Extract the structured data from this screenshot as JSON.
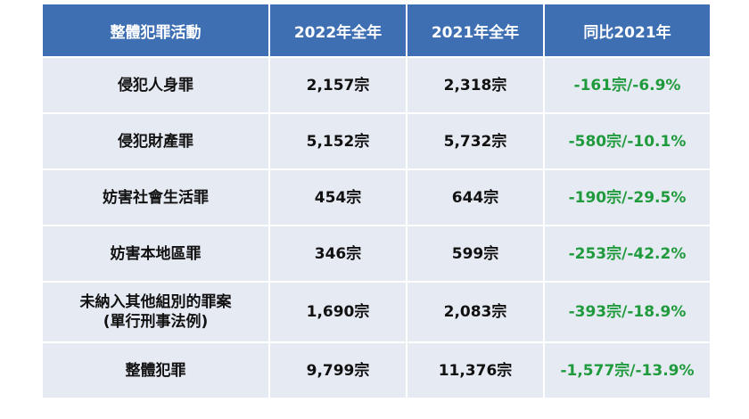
{
  "table": {
    "headers": [
      "整體犯罪活動",
      "2022年全年",
      "2021年全年",
      "同比2021年"
    ],
    "rows": [
      {
        "category_lines": [
          "侵犯人身罪"
        ],
        "y2022": "2,157宗",
        "y2021": "2,318宗",
        "change": "-161宗/-6.9%"
      },
      {
        "category_lines": [
          "侵犯財產罪"
        ],
        "y2022": "5,152宗",
        "y2021": "5,732宗",
        "change": "-580宗/-10.1%"
      },
      {
        "category_lines": [
          "妨害社會生活罪"
        ],
        "y2022": "454宗",
        "y2021": "644宗",
        "change": "-190宗/-29.5%"
      },
      {
        "category_lines": [
          "妨害本地區罪"
        ],
        "y2022": "346宗",
        "y2021": "599宗",
        "change": "-253宗/-42.2%"
      },
      {
        "category_lines": [
          "未納入其他組別的罪案",
          "(單行刑事法例)"
        ],
        "y2022": "1,690宗",
        "y2021": "2,083宗",
        "change": "-393宗/-18.9%"
      },
      {
        "category_lines": [
          "整體犯罪"
        ],
        "y2022": "9,799宗",
        "y2021": "11,376宗",
        "change": "-1,577宗/-13.9%"
      }
    ]
  },
  "colors": {
    "header_bg": "#3f6fb3",
    "header_text": "#ffffff",
    "row_bg": "#e6eaf3",
    "change_text": "#1f9a3c"
  }
}
